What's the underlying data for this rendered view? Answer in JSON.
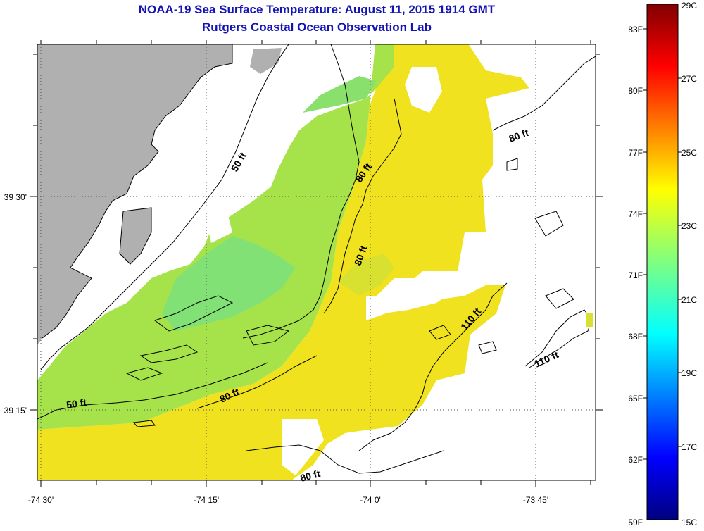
{
  "title": "NOAA-19 Sea Surface Temperature:  August 11, 2015 1914 GMT",
  "subtitle": "Rutgers Coastal Ocean Observation Lab",
  "x_ticks": [
    "-74 30'",
    "-74 15'",
    "-74 0'",
    "-73 45'"
  ],
  "y_ticks": [
    "39 30'",
    "39 15'"
  ],
  "contour_labels": [
    "50 ft",
    "50 ft",
    "80 ft",
    "80 ft",
    "80 ft",
    "80 ft",
    "80 ft",
    "110 ft",
    "110 ft"
  ],
  "colorbar": {
    "fahrenheit_labels": [
      "83F",
      "80F",
      "77F",
      "74F",
      "71F",
      "68F",
      "65F",
      "62F",
      "59F"
    ],
    "celsius_labels": [
      "29C",
      "27C",
      "25C",
      "23C",
      "21C",
      "19C",
      "17C",
      "15C"
    ],
    "range_c": [
      15,
      29
    ]
  },
  "colors": {
    "title": "#1414b4",
    "land": "#b0b0b0",
    "cloud_mask": "#ffffff",
    "sst_warm": "#f0e21e",
    "sst_mid": "#a6e34a",
    "sst_cool": "#7ee07a"
  }
}
